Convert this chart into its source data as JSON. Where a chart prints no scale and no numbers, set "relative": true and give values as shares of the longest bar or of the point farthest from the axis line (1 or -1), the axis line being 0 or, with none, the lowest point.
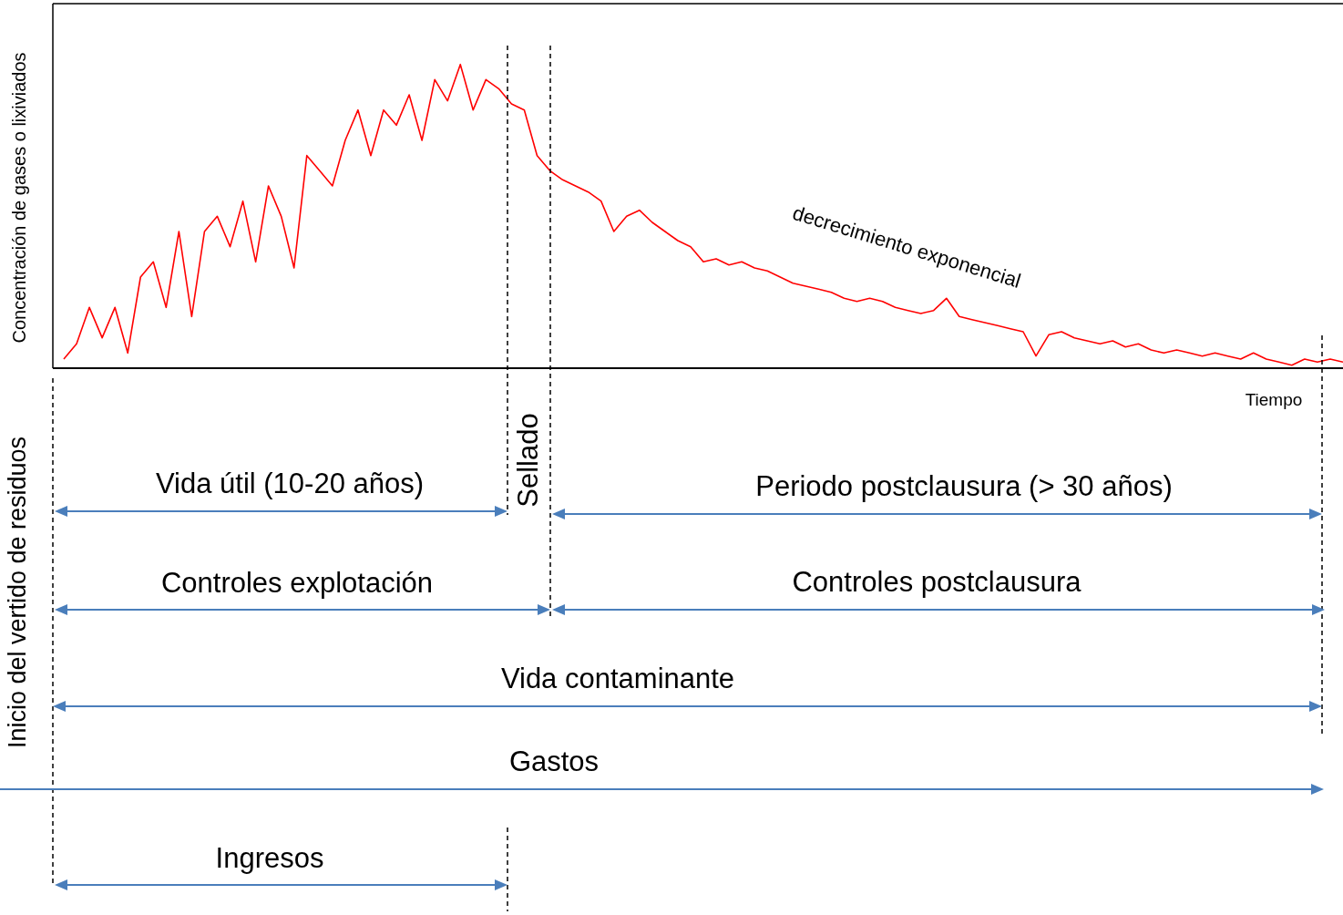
{
  "chart_data": {
    "type": "line",
    "relative": true,
    "xlabel": "Tiempo",
    "ylabel": "Concentración de gases o lixiviados",
    "categories": [
      null,
      null,
      null,
      null,
      null,
      null,
      null,
      null,
      null,
      null,
      null,
      null,
      null,
      null,
      null,
      null,
      null,
      null,
      null,
      null,
      null,
      null,
      null,
      null,
      null,
      null,
      null,
      null,
      null,
      null,
      null,
      null,
      null,
      null,
      null,
      null,
      null,
      null,
      null,
      null,
      null,
      null,
      null,
      null,
      null,
      null,
      null,
      null,
      null,
      null,
      null,
      null,
      null,
      null,
      null,
      null,
      null,
      null,
      null,
      null,
      null,
      null,
      null,
      null,
      null,
      null,
      null,
      null,
      null,
      null,
      null,
      null,
      null,
      null,
      null,
      null,
      null,
      null,
      null,
      null,
      null,
      null,
      null,
      null,
      null,
      null,
      null,
      null,
      null,
      null,
      null,
      null,
      null,
      null,
      null,
      null,
      null,
      null,
      null,
      null,
      null
    ],
    "series": [
      {
        "color": "#ff0000",
        "values": [
          0.03,
          0.08,
          0.2,
          0.1,
          0.2,
          0.05,
          0.3,
          0.35,
          0.2,
          0.45,
          0.17,
          0.45,
          0.5,
          0.4,
          0.55,
          0.35,
          0.6,
          0.5,
          0.33,
          0.7,
          0.65,
          0.6,
          0.75,
          0.85,
          0.7,
          0.85,
          0.8,
          0.9,
          0.75,
          0.95,
          0.88,
          1.0,
          0.85,
          0.95,
          0.92,
          0.87,
          0.85,
          0.7,
          0.65,
          0.62,
          0.6,
          0.58,
          0.55,
          0.45,
          0.5,
          0.52,
          0.48,
          0.45,
          0.42,
          0.4,
          0.35,
          0.36,
          0.34,
          0.35,
          0.33,
          0.32,
          0.3,
          0.28,
          0.27,
          0.26,
          0.25,
          0.23,
          0.22,
          0.23,
          0.22,
          0.2,
          0.19,
          0.18,
          0.19,
          0.23,
          0.17,
          0.16,
          0.15,
          0.14,
          0.13,
          0.12,
          0.04,
          0.11,
          0.12,
          0.1,
          0.09,
          0.08,
          0.09,
          0.07,
          0.08,
          0.06,
          0.05,
          0.06,
          0.05,
          0.04,
          0.05,
          0.04,
          0.03,
          0.05,
          0.03,
          0.02,
          0.01,
          0.03,
          0.02,
          0.03,
          0.02
        ]
      }
    ],
    "annotations": [
      "decrecimiento exponencial",
      "Inicio del vertido de residuos",
      "Vida útil (10-20 años)",
      "Sellado",
      "Periodo postclausura (> 30 años)",
      "Controles explotación",
      "Controles postclausura",
      "Vida contaminante",
      "Gastos",
      "Ingresos"
    ]
  }
}
